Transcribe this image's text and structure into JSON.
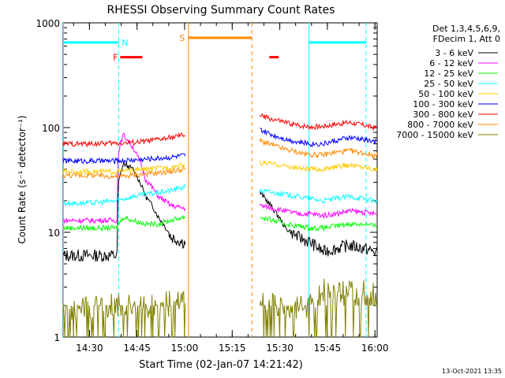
{
  "chart_data": {
    "type": "line",
    "title": "RHESSI Observing Summary Count Rates",
    "xlabel": "Start Time (02-Jan-07 14:21:42)",
    "ylabel": "Count Rate (s⁻¹ detector⁻¹)",
    "footer": "13-Oct-2021 13:35",
    "yscale": "log",
    "ylim": [
      1,
      1000
    ],
    "xlim_minutes_after_1421": [
      0,
      99
    ],
    "x_ticks": [
      {
        "minutes": 8.3,
        "label": "14:30"
      },
      {
        "minutes": 23.3,
        "label": "14:45"
      },
      {
        "minutes": 38.3,
        "label": "15:00"
      },
      {
        "minutes": 53.3,
        "label": "15:15"
      },
      {
        "minutes": 68.3,
        "label": "15:30"
      },
      {
        "minutes": 83.3,
        "label": "15:45"
      },
      {
        "minutes": 98.3,
        "label": "16:00"
      }
    ],
    "y_ticks": [
      {
        "value": 1,
        "label": "1"
      },
      {
        "value": 10,
        "label": "10"
      },
      {
        "value": 100,
        "label": "100"
      },
      {
        "value": 1000,
        "label": "1000"
      }
    ],
    "legend_header": [
      "Det 1,3,4,5,6,9,",
      "FDecim 1, Att 0"
    ],
    "series": [
      {
        "name": "3 - 6 keV",
        "color": "#000000",
        "x": [
          0,
          8,
          17,
          17.5,
          19,
          22,
          26,
          30,
          34,
          38,
          38.5,
          62,
          66,
          70,
          74,
          78,
          82,
          86,
          90,
          95,
          98
        ],
        "values": [
          6,
          6,
          6,
          30,
          45,
          40,
          22,
          14,
          9,
          8,
          8,
          24,
          17,
          11,
          9,
          8,
          6.5,
          7,
          7.5,
          7,
          6.5
        ]
      },
      {
        "name": "6 - 12 keV",
        "color": "#ff00ff",
        "x": [
          0,
          8,
          17,
          17.5,
          19,
          22,
          26,
          30,
          34,
          38,
          38.5,
          62,
          66,
          70,
          74,
          78,
          82,
          86,
          90,
          95,
          98
        ],
        "values": [
          13,
          13,
          13,
          60,
          85,
          65,
          32,
          22,
          18,
          17,
          17,
          18,
          17,
          16,
          15,
          15,
          14.5,
          15,
          16,
          15.5,
          15
        ]
      },
      {
        "name": "12 - 25 keV",
        "color": "#00ff00",
        "x": [
          0,
          8,
          17,
          17.5,
          19,
          22,
          26,
          30,
          34,
          38,
          38.5,
          62,
          66,
          70,
          74,
          78,
          82,
          86,
          90,
          95,
          98
        ],
        "values": [
          11,
          11,
          11,
          12,
          14,
          13,
          12,
          12,
          13,
          14,
          14,
          14,
          13,
          12,
          11.5,
          11,
          11,
          11.5,
          12,
          12,
          11.5
        ]
      },
      {
        "name": "25 - 50 keV",
        "color": "#00ffff",
        "x": [
          0,
          8,
          17,
          22,
          26,
          30,
          34,
          38,
          38.5,
          62,
          66,
          70,
          74,
          78,
          82,
          86,
          90,
          95,
          98
        ],
        "values": [
          19,
          19,
          20,
          22,
          23,
          24,
          25,
          27,
          27,
          25,
          24,
          23,
          22,
          21,
          20,
          21,
          22,
          21,
          20
        ]
      },
      {
        "name": "50 - 100 keV",
        "color": "#ffcc00",
        "x": [
          0,
          8,
          17,
          22,
          26,
          30,
          34,
          38,
          38.5,
          62,
          66,
          70,
          74,
          78,
          82,
          86,
          90,
          95,
          98
        ],
        "values": [
          38,
          38,
          38,
          39,
          40,
          41,
          42,
          44,
          44,
          46,
          45,
          43,
          41,
          40,
          40,
          42,
          44,
          42,
          40
        ]
      },
      {
        "name": "100 - 300 keV",
        "color": "#0000ff",
        "x": [
          0,
          8,
          17,
          22,
          26,
          30,
          34,
          38,
          38.5,
          62,
          66,
          70,
          74,
          78,
          82,
          86,
          90,
          95,
          98
        ],
        "values": [
          48,
          48,
          48,
          49,
          50,
          51,
          52,
          54,
          54,
          95,
          85,
          78,
          73,
          70,
          70,
          75,
          80,
          77,
          73
        ]
      },
      {
        "name": "300 - 800 keV",
        "color": "#ff0000",
        "x": [
          0,
          8,
          17,
          22,
          26,
          30,
          34,
          38,
          38.5,
          62,
          66,
          70,
          74,
          78,
          82,
          86,
          90,
          95,
          98
        ],
        "values": [
          70,
          70,
          71,
          72,
          74,
          77,
          80,
          85,
          85,
          130,
          120,
          112,
          105,
          102,
          103,
          108,
          112,
          105,
          100
        ]
      },
      {
        "name": "800 - 7000 keV",
        "color": "#ff8800",
        "x": [
          0,
          8,
          17,
          22,
          26,
          30,
          34,
          38,
          38.5,
          62,
          66,
          70,
          74,
          78,
          82,
          86,
          90,
          95,
          98
        ],
        "values": [
          35,
          35,
          34,
          35,
          36,
          37,
          38,
          40,
          40,
          75,
          68,
          62,
          58,
          55,
          55,
          58,
          60,
          57,
          54
        ]
      },
      {
        "name": "7000 - 15000 keV",
        "color": "#808000",
        "x": [
          0,
          8,
          17,
          22,
          26,
          30,
          34,
          38,
          38.5,
          62,
          66,
          70,
          74,
          78,
          82,
          86,
          90,
          95,
          98
        ],
        "values": [
          1.9,
          1.9,
          2,
          2,
          2,
          2,
          2.1,
          2.2,
          2.2,
          2,
          2,
          2,
          2,
          2,
          2.8,
          2.8,
          2.8,
          2.8,
          2.5
        ]
      }
    ],
    "gaps": [
      [
        38.5,
        62
      ],
      [
        0,
        0
      ]
    ],
    "annotations": [
      {
        "label": "N",
        "color": "#00ffff",
        "x_start": 0,
        "x_end": 17.5,
        "y": 650,
        "x_label": 19.5
      },
      {
        "label": "N",
        "color": "#00ffff",
        "x_start": 77.5,
        "x_end": 95.5,
        "y": 650
      },
      {
        "label": "F",
        "color": "#ff0000",
        "x_start": 18,
        "x_end": 25,
        "y": 470,
        "x_label": 16.5
      },
      {
        "label": "F",
        "color": "#ff0000",
        "x_start": 65,
        "x_end": 68,
        "y": 470
      },
      {
        "label": "S",
        "color": "#ff8800",
        "x_start": 39.5,
        "x_end": 59.5,
        "y": 720,
        "x_label": 37.5
      }
    ],
    "vlines": [
      {
        "x": 0.1,
        "color": "#00ffff",
        "dashed": false
      },
      {
        "x": 17.5,
        "color": "#00ffff",
        "dashed": true
      },
      {
        "x": 77.5,
        "color": "#00ffff",
        "dashed": false
      },
      {
        "x": 95.5,
        "color": "#00ffff",
        "dashed": true
      },
      {
        "x": 39.5,
        "color": "#ff8800",
        "dashed": false
      },
      {
        "x": 59.5,
        "color": "#ff8800",
        "dashed": true
      }
    ]
  }
}
